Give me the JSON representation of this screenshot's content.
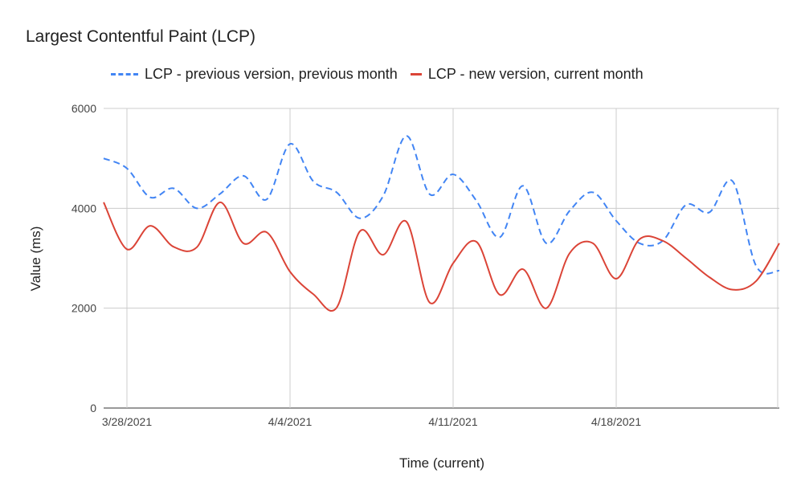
{
  "chart_data": {
    "type": "line",
    "title": "Largest Contentful Paint (LCP)",
    "xlabel": "Time (current)",
    "ylabel": "Value (ms)",
    "ylim": [
      0,
      6000
    ],
    "yticks": [
      "0",
      "2000",
      "4000",
      "6000"
    ],
    "xticks": [
      "3/28/2021",
      "4/4/2021",
      "4/11/2021",
      "4/18/2021"
    ],
    "grid": true,
    "legend": "top",
    "x": [
      "3/27/2021",
      "3/28/2021",
      "3/29/2021",
      "3/30/2021",
      "3/31/2021",
      "4/1/2021",
      "4/2/2021",
      "4/3/2021",
      "4/4/2021",
      "4/5/2021",
      "4/6/2021",
      "4/7/2021",
      "4/8/2021",
      "4/9/2021",
      "4/10/2021",
      "4/11/2021",
      "4/12/2021",
      "4/13/2021",
      "4/14/2021",
      "4/15/2021",
      "4/16/2021",
      "4/17/2021",
      "4/18/2021",
      "4/19/2021",
      "4/20/2021",
      "4/21/2021",
      "4/22/2021",
      "4/23/2021",
      "4/24/2021",
      "4/25/2021"
    ],
    "series": [
      {
        "name": "LCP - previous version, previous month",
        "color": "#4285f4",
        "style": "dashed",
        "values": [
          5000,
          4800,
          4220,
          4400,
          4000,
          4290,
          4650,
          4180,
          5290,
          4540,
          4320,
          3800,
          4250,
          5450,
          4280,
          4680,
          4150,
          3420,
          4450,
          3300,
          3950,
          4320,
          3750,
          3300,
          3350,
          4070,
          3920,
          4540,
          2850,
          2750
        ]
      },
      {
        "name": "LCP - new version, current month",
        "color": "#db4437",
        "style": "solid",
        "values": [
          4120,
          3180,
          3650,
          3230,
          3220,
          4120,
          3300,
          3520,
          2730,
          2280,
          2010,
          3540,
          3070,
          3730,
          2110,
          2900,
          3330,
          2270,
          2780,
          2000,
          3100,
          3300,
          2590,
          3380,
          3350,
          3000,
          2620,
          2370,
          2540,
          3300
        ]
      }
    ]
  }
}
